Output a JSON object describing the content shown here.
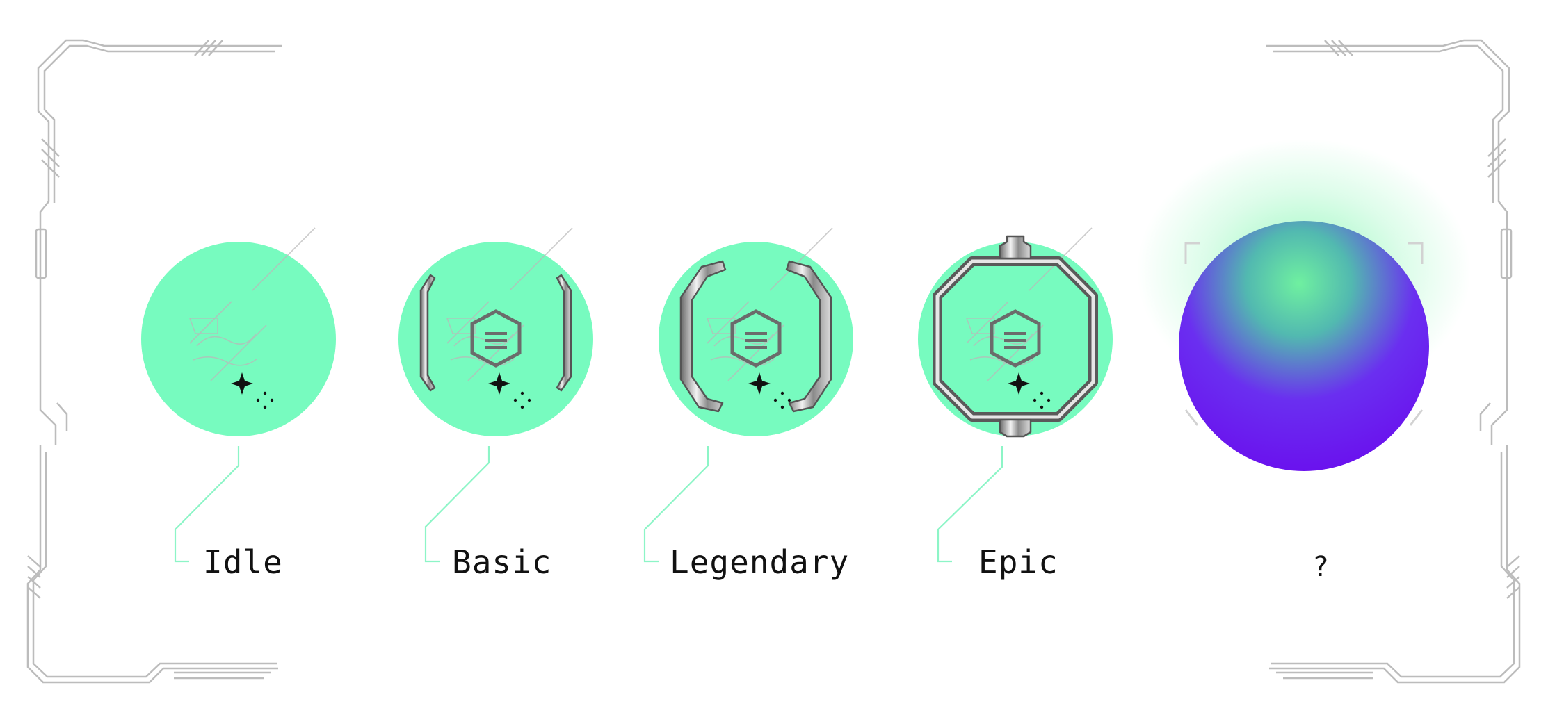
{
  "colors": {
    "mint": "#77fbbf",
    "mint_line": "#8df5c7",
    "circuit": "#b9b9b9",
    "metal_dark": "#5b5b5b",
    "metal_light": "#e8e8e8",
    "orb_top": "#6ff0a0",
    "orb_bottom": "#6a12ee",
    "text": "#111111"
  },
  "tiers": [
    {
      "label": "Idle",
      "armor": "none",
      "icon": "idle-core-icon"
    },
    {
      "label": "Basic",
      "armor": "side-brackets",
      "icon": "basic-armor-icon"
    },
    {
      "label": "Legendary",
      "armor": "corner-brackets",
      "icon": "legendary-armor-icon"
    },
    {
      "label": "Epic",
      "armor": "full-ring",
      "icon": "epic-armor-icon"
    }
  ],
  "mystery": {
    "label": "?",
    "icon": "mystery-orb-icon"
  }
}
